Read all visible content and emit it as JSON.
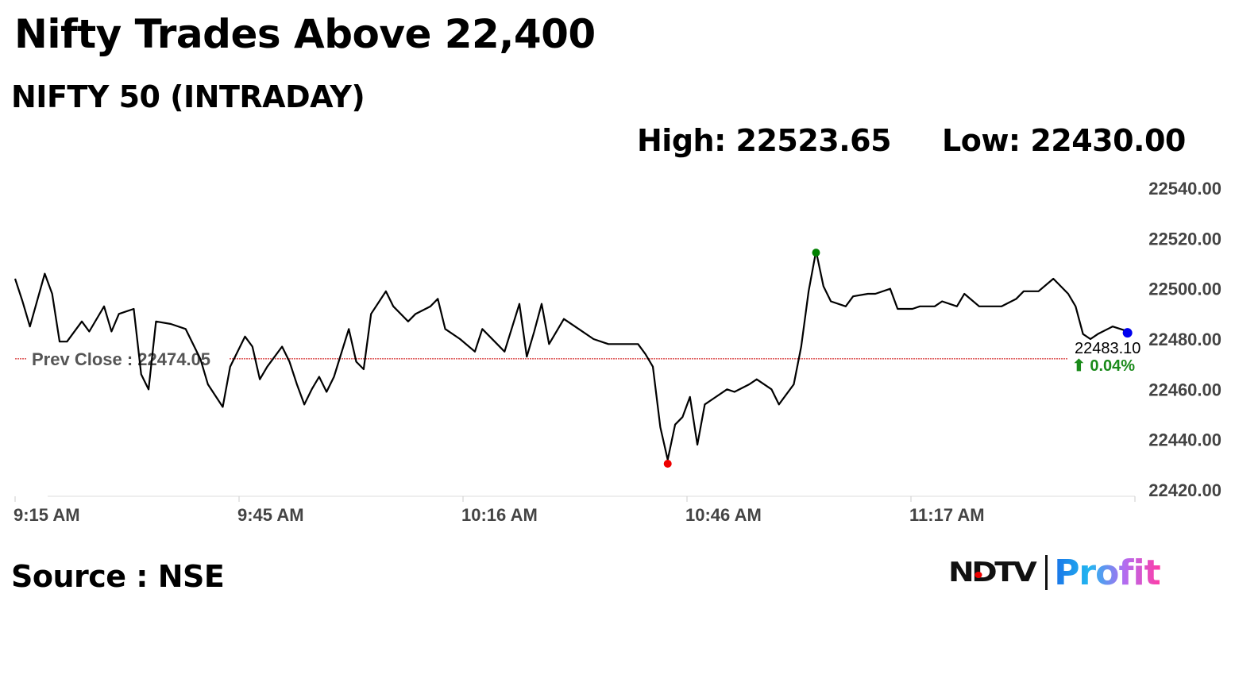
{
  "header": {
    "title": "Nifty Trades Above 22,400",
    "subtitle": "NIFTY 50 (INTRADAY)",
    "high_label": "High: 22523.65",
    "low_label": "Low: 22430.00"
  },
  "footer": {
    "source": "Source : NSE",
    "logo": {
      "brand": "NDTV",
      "product": "Profit"
    }
  },
  "chart_data": {
    "type": "line",
    "title": "NIFTY 50 (INTRADAY)",
    "xlim": [
      "9:15",
      "11:46"
    ],
    "ylim": [
      22420,
      22540
    ],
    "x_ticks": [
      "9:15 AM",
      "9:45 AM",
      "10:16 AM",
      "10:46 AM",
      "11:17 AM",
      ""
    ],
    "y_ticks": [
      "22540.00",
      "22520.00",
      "22500.00",
      "22480.00",
      "22460.00",
      "22440.00",
      "22420.00"
    ],
    "grid": false,
    "prev_close": {
      "label": "Prev Close : 22474.05",
      "value": 22474.05,
      "color": "#cc0000"
    },
    "last": {
      "value_label": "22483.10",
      "change_label": "⬆ 0.04%",
      "change_color": "#1a8a1a",
      "marker_color": "#0000ee"
    },
    "high_marker_color": "#008000",
    "low_marker_color": "#ee0000",
    "line_color": "#000000",
    "points": [
      [
        "9:15",
        22504
      ],
      [
        "9:16",
        22495
      ],
      [
        "9:17",
        22485
      ],
      [
        "9:19",
        22506
      ],
      [
        "9:20",
        22498
      ],
      [
        "9:21",
        22479
      ],
      [
        "9:22",
        22479
      ],
      [
        "9:24",
        22487
      ],
      [
        "9:25",
        22483
      ],
      [
        "9:27",
        22493
      ],
      [
        "9:28",
        22483
      ],
      [
        "9:29",
        22490
      ],
      [
        "9:31",
        22492
      ],
      [
        "9:32",
        22466
      ],
      [
        "9:33",
        22460
      ],
      [
        "9:34",
        22487
      ],
      [
        "9:36",
        22486
      ],
      [
        "9:38",
        22484
      ],
      [
        "9:40",
        22472
      ],
      [
        "9:41",
        22462
      ],
      [
        "9:43",
        22453
      ],
      [
        "9:44",
        22469
      ],
      [
        "9:46",
        22481
      ],
      [
        "9:47",
        22477
      ],
      [
        "9:48",
        22464
      ],
      [
        "9:49",
        22469
      ],
      [
        "9:51",
        22477
      ],
      [
        "9:52",
        22471
      ],
      [
        "9:53",
        22462
      ],
      [
        "9:54",
        22454
      ],
      [
        "9:55",
        22460
      ],
      [
        "9:56",
        22465
      ],
      [
        "9:57",
        22459
      ],
      [
        "9:58",
        22465
      ],
      [
        "10:00",
        22484
      ],
      [
        "10:01",
        22471
      ],
      [
        "10:02",
        22468
      ],
      [
        "10:03",
        22490
      ],
      [
        "10:05",
        22499
      ],
      [
        "10:06",
        22493
      ],
      [
        "10:08",
        22487
      ],
      [
        "10:09",
        22490
      ],
      [
        "10:11",
        22493
      ],
      [
        "10:12",
        22496
      ],
      [
        "10:13",
        22484
      ],
      [
        "10:15",
        22480
      ],
      [
        "10:17",
        22475
      ],
      [
        "10:18",
        22484
      ],
      [
        "10:20",
        22478
      ],
      [
        "10:21",
        22475
      ],
      [
        "10:23",
        22494
      ],
      [
        "10:24",
        22473
      ],
      [
        "10:25",
        22483
      ],
      [
        "10:26",
        22494
      ],
      [
        "10:27",
        22478
      ],
      [
        "10:29",
        22488
      ],
      [
        "10:31",
        22484
      ],
      [
        "10:33",
        22480
      ],
      [
        "10:35",
        22478
      ],
      [
        "10:37",
        22478
      ],
      [
        "10:39",
        22478
      ],
      [
        "10:40",
        22474
      ],
      [
        "10:41",
        22469
      ],
      [
        "10:42",
        22445
      ],
      [
        "10:43",
        22432
      ],
      [
        "10:44",
        22446
      ],
      [
        "10:45",
        22449
      ],
      [
        "10:46",
        22457
      ],
      [
        "10:47",
        22438
      ],
      [
        "10:48",
        22454
      ],
      [
        "10:49",
        22456
      ],
      [
        "10:51",
        22460
      ],
      [
        "10:52",
        22459
      ],
      [
        "10:54",
        22462
      ],
      [
        "10:55",
        22464
      ],
      [
        "10:57",
        22460
      ],
      [
        "10:58",
        22454
      ],
      [
        "11:00",
        22462
      ],
      [
        "11:01",
        22477
      ],
      [
        "11:02",
        22499
      ],
      [
        "11:03",
        22515
      ],
      [
        "11:04",
        22501
      ],
      [
        "11:05",
        22495
      ],
      [
        "11:07",
        22493
      ],
      [
        "11:08",
        22497
      ],
      [
        "11:10",
        22498
      ],
      [
        "11:11",
        22498
      ],
      [
        "11:13",
        22500
      ],
      [
        "11:14",
        22492
      ],
      [
        "11:16",
        22492
      ],
      [
        "11:17",
        22493
      ],
      [
        "11:19",
        22493
      ],
      [
        "11:20",
        22495
      ],
      [
        "11:22",
        22493
      ],
      [
        "11:23",
        22498
      ],
      [
        "11:25",
        22493
      ],
      [
        "11:26",
        22493
      ],
      [
        "11:28",
        22493
      ],
      [
        "11:30",
        22496
      ],
      [
        "11:31",
        22499
      ],
      [
        "11:33",
        22499
      ],
      [
        "11:35",
        22504
      ],
      [
        "11:37",
        22498
      ],
      [
        "11:38",
        22493
      ],
      [
        "11:39",
        22482
      ],
      [
        "11:40",
        22480
      ],
      [
        "11:41",
        22482
      ],
      [
        "11:43",
        22485
      ],
      [
        "11:45",
        22483.1
      ]
    ]
  }
}
